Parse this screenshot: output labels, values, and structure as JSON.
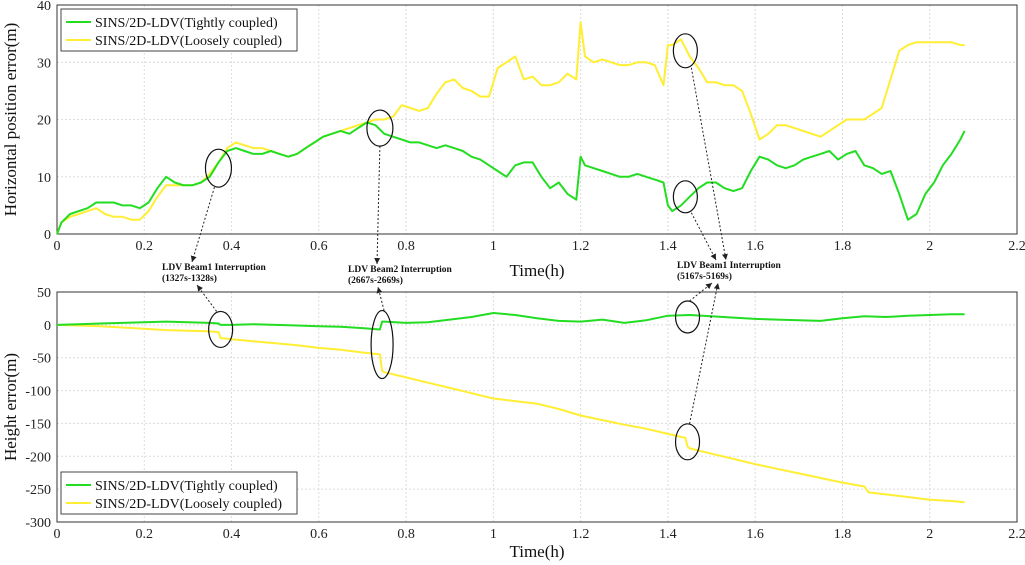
{
  "chart_data": [
    {
      "type": "line",
      "xlabel": "Time(h)",
      "ylabel": "Horizontal position error(m)",
      "xlim": [
        0,
        2.2
      ],
      "ylim": [
        0,
        40
      ],
      "xticks": [
        "0",
        "0.2",
        "0.4",
        "0.6",
        "0.8",
        "1",
        "1.2",
        "1.4",
        "1.6",
        "1.8",
        "2",
        "2.2"
      ],
      "yticks": [
        "0",
        "10",
        "20",
        "30",
        "40"
      ],
      "grid": true,
      "legend": "top-left",
      "series": [
        {
          "name": "SINS/2D-LDV(Tightly coupled)",
          "color": "#22dd22",
          "x": [
            0,
            0.01,
            0.03,
            0.05,
            0.07,
            0.09,
            0.11,
            0.13,
            0.15,
            0.17,
            0.19,
            0.21,
            0.23,
            0.25,
            0.27,
            0.29,
            0.31,
            0.33,
            0.35,
            0.37,
            0.39,
            0.41,
            0.43,
            0.45,
            0.47,
            0.49,
            0.51,
            0.53,
            0.55,
            0.57,
            0.59,
            0.61,
            0.63,
            0.65,
            0.67,
            0.69,
            0.71,
            0.73,
            0.75,
            0.77,
            0.79,
            0.81,
            0.83,
            0.85,
            0.87,
            0.89,
            0.91,
            0.93,
            0.95,
            0.97,
            0.99,
            1.01,
            1.03,
            1.05,
            1.07,
            1.09,
            1.11,
            1.13,
            1.15,
            1.17,
            1.19,
            1.2,
            1.21,
            1.23,
            1.25,
            1.27,
            1.29,
            1.31,
            1.33,
            1.35,
            1.37,
            1.39,
            1.4,
            1.41,
            1.43,
            1.45,
            1.47,
            1.49,
            1.51,
            1.53,
            1.55,
            1.57,
            1.59,
            1.61,
            1.63,
            1.65,
            1.67,
            1.69,
            1.71,
            1.73,
            1.75,
            1.77,
            1.79,
            1.81,
            1.83,
            1.85,
            1.87,
            1.89,
            1.91,
            1.93,
            1.95,
            1.97,
            1.99,
            2.01,
            2.03,
            2.05,
            2.07,
            2.08
          ],
          "y": [
            0,
            2,
            3.5,
            4,
            4.5,
            5.5,
            5.5,
            5.5,
            5,
            5,
            4.5,
            5.5,
            8,
            10,
            9,
            8.5,
            8.5,
            9,
            10,
            12.5,
            14.5,
            15,
            14.5,
            14,
            14,
            14.5,
            14,
            13.5,
            14,
            15,
            16,
            17,
            17.5,
            18,
            17.5,
            18.5,
            19.5,
            19,
            17.5,
            17,
            16.5,
            16,
            16,
            15.5,
            15,
            15.5,
            15,
            14.5,
            13.5,
            13,
            12,
            11,
            10,
            12,
            12.5,
            12.5,
            10,
            8,
            9,
            7,
            6,
            13.5,
            12,
            11.5,
            11,
            10.5,
            10,
            10,
            10.5,
            10,
            9.5,
            9,
            5,
            4,
            5,
            6.5,
            8,
            9,
            9,
            8,
            7.5,
            8,
            11,
            13.5,
            13,
            12,
            11.5,
            12,
            13,
            13.5,
            14,
            14.5,
            13,
            14,
            14.5,
            12,
            11.5,
            10.5,
            11,
            7,
            2.5,
            3.5,
            7,
            9,
            12,
            14,
            16.5,
            18
          ]
        },
        {
          "name": "SINS/2D-LDV(Loosely coupled)",
          "color": "#ffee33",
          "x": [
            0,
            0.01,
            0.03,
            0.05,
            0.07,
            0.09,
            0.11,
            0.13,
            0.15,
            0.17,
            0.19,
            0.21,
            0.23,
            0.25,
            0.27,
            0.29,
            0.31,
            0.33,
            0.35,
            0.37,
            0.39,
            0.41,
            0.43,
            0.45,
            0.47,
            0.49,
            0.51,
            0.53,
            0.55,
            0.57,
            0.59,
            0.61,
            0.63,
            0.65,
            0.67,
            0.69,
            0.71,
            0.73,
            0.75,
            0.77,
            0.79,
            0.81,
            0.83,
            0.85,
            0.87,
            0.89,
            0.91,
            0.93,
            0.95,
            0.97,
            0.99,
            1.01,
            1.03,
            1.05,
            1.07,
            1.09,
            1.11,
            1.13,
            1.15,
            1.17,
            1.19,
            1.2,
            1.21,
            1.23,
            1.25,
            1.27,
            1.29,
            1.31,
            1.33,
            1.35,
            1.37,
            1.39,
            1.4,
            1.41,
            1.43,
            1.45,
            1.47,
            1.49,
            1.51,
            1.53,
            1.55,
            1.57,
            1.59,
            1.61,
            1.63,
            1.65,
            1.67,
            1.69,
            1.71,
            1.73,
            1.75,
            1.77,
            1.79,
            1.81,
            1.83,
            1.85,
            1.87,
            1.89,
            1.91,
            1.93,
            1.95,
            1.97,
            1.99,
            2.01,
            2.03,
            2.05,
            2.07,
            2.08
          ],
          "y": [
            0,
            2,
            3,
            3.5,
            4,
            4.5,
            3.5,
            3,
            3,
            2.5,
            2.5,
            4,
            6.5,
            8.5,
            8.5,
            8.5,
            8.5,
            9,
            10.5,
            12.5,
            15,
            16,
            15.5,
            15,
            15,
            14.5,
            14,
            13.5,
            14,
            15,
            16,
            17,
            17.5,
            18,
            18.5,
            19,
            19.5,
            20,
            20,
            20.5,
            22.5,
            22,
            21.5,
            22,
            24.5,
            26.5,
            27,
            25.5,
            25,
            24,
            24,
            29,
            30,
            31,
            27,
            27.5,
            26,
            26,
            26.5,
            28,
            27,
            37,
            31,
            30,
            30.5,
            30,
            29.5,
            29.5,
            30,
            30,
            29.5,
            26,
            33,
            33,
            34,
            31,
            29,
            26.5,
            26.5,
            26,
            26,
            25,
            21,
            16.5,
            17.5,
            19,
            19,
            18.5,
            18,
            17.5,
            17,
            18,
            19,
            20,
            20,
            20,
            21,
            22,
            27,
            32,
            33,
            33.5,
            33.5,
            33.5,
            33.5,
            33.5,
            33,
            33
          ]
        }
      ]
    },
    {
      "type": "line",
      "xlabel": "Time(h)",
      "ylabel": "Height error(m)",
      "xlim": [
        0,
        2.2
      ],
      "ylim": [
        -300,
        50
      ],
      "xticks": [
        "0",
        "0.2",
        "0.4",
        "0.6",
        "0.8",
        "1",
        "1.2",
        "1.4",
        "1.6",
        "1.8",
        "2",
        "2.2"
      ],
      "yticks": [
        "50",
        "0",
        "-50",
        "-100",
        "-150",
        "-200",
        "-250",
        "-300"
      ],
      "grid": true,
      "legend": "bottom-left",
      "series": [
        {
          "name": "SINS/2D-LDV(Tightly coupled)",
          "color": "#22dd22",
          "x": [
            0,
            0.05,
            0.1,
            0.15,
            0.2,
            0.25,
            0.3,
            0.35,
            0.37,
            0.375,
            0.4,
            0.45,
            0.5,
            0.55,
            0.6,
            0.65,
            0.7,
            0.74,
            0.745,
            0.75,
            0.8,
            0.85,
            0.9,
            0.95,
            1.0,
            1.05,
            1.1,
            1.15,
            1.2,
            1.25,
            1.3,
            1.35,
            1.4,
            1.45,
            1.5,
            1.55,
            1.6,
            1.65,
            1.7,
            1.75,
            1.8,
            1.85,
            1.9,
            1.95,
            2.0,
            2.05,
            2.08
          ],
          "y": [
            0,
            1,
            2,
            3,
            4,
            5,
            4,
            3,
            2,
            0,
            0,
            1,
            0,
            -1,
            -2,
            -3,
            -5,
            -7,
            5,
            5,
            3,
            4,
            8,
            12,
            18,
            15,
            10,
            6,
            5,
            8,
            3,
            7,
            14,
            15,
            13,
            11,
            9,
            8,
            7,
            6,
            10,
            13,
            12,
            14,
            15,
            16,
            16
          ]
        },
        {
          "name": "SINS/2D-LDV(Loosely coupled)",
          "color": "#ffee33",
          "x": [
            0,
            0.05,
            0.1,
            0.15,
            0.2,
            0.25,
            0.3,
            0.35,
            0.37,
            0.375,
            0.4,
            0.45,
            0.5,
            0.55,
            0.6,
            0.65,
            0.7,
            0.74,
            0.745,
            0.75,
            0.8,
            0.85,
            0.9,
            0.95,
            1.0,
            1.05,
            1.1,
            1.15,
            1.2,
            1.25,
            1.3,
            1.35,
            1.4,
            1.44,
            1.445,
            1.45,
            1.5,
            1.55,
            1.6,
            1.65,
            1.7,
            1.75,
            1.8,
            1.85,
            1.86,
            1.9,
            1.95,
            2.0,
            2.05,
            2.08
          ],
          "y": [
            0,
            -1,
            -2,
            -4,
            -6,
            -8,
            -9,
            -10,
            -11,
            -20,
            -22,
            -25,
            -28,
            -31,
            -35,
            -38,
            -42,
            -45,
            -70,
            -72,
            -80,
            -88,
            -96,
            -104,
            -112,
            -116,
            -120,
            -128,
            -138,
            -145,
            -152,
            -158,
            -166,
            -172,
            -185,
            -188,
            -196,
            -204,
            -212,
            -219,
            -226,
            -233,
            -240,
            -246,
            -255,
            -258,
            -262,
            -266,
            -268,
            -270
          ]
        }
      ]
    }
  ],
  "annotations": [
    {
      "line1": "LDV Beam1 Interruption",
      "line2": "(1327s-1328s)"
    },
    {
      "line1": "LDV Beam2 Interruption",
      "line2": "(2667s-2669s)"
    },
    {
      "line1": "LDV Beam1 Interruption",
      "line2": "(5167s-5169s)"
    }
  ],
  "colors": {
    "tight": "#22dd22",
    "loose": "#ffee33"
  }
}
